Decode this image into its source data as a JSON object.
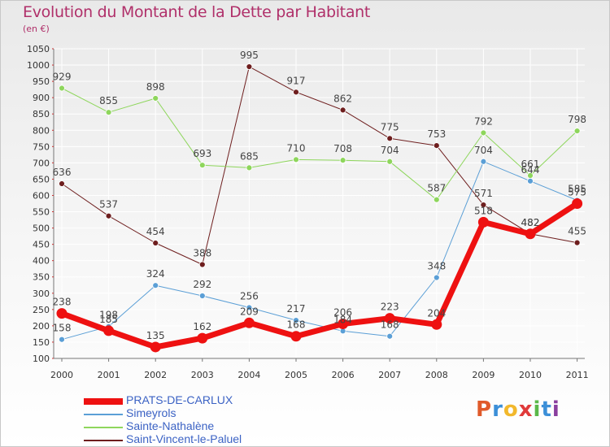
{
  "title": "Evolution du Montant de la Dette par Habitant",
  "subtitle": "(en €)",
  "logo": {
    "text": "Proxiti",
    "letters": [
      {
        "ch": "P",
        "color": "#e05a2a"
      },
      {
        "ch": "r",
        "color": "#3c8fd8"
      },
      {
        "ch": "o",
        "color": "#f2b82c"
      },
      {
        "ch": "x",
        "color": "#e03a3a"
      },
      {
        "ch": "i",
        "color": "#5bb84a"
      },
      {
        "ch": "t",
        "color": "#3c8fd8"
      },
      {
        "ch": "i",
        "color": "#8a3f9e"
      }
    ]
  },
  "chart_data": {
    "type": "line",
    "title": "Evolution du Montant de la Dette par Habitant",
    "subtitle": "(en €)",
    "xlabel": "",
    "ylabel": "",
    "x": [
      "2000",
      "2001",
      "2002",
      "2003",
      "2004",
      "2005",
      "2006",
      "2007",
      "2008",
      "2009",
      "2010",
      "2011"
    ],
    "ylim": [
      100,
      1050
    ],
    "yticks": [
      100,
      150,
      200,
      250,
      300,
      350,
      400,
      450,
      500,
      550,
      600,
      650,
      700,
      750,
      800,
      850,
      900,
      950,
      1000,
      1050
    ],
    "grid": true,
    "legend_position": "bottom-left",
    "series": [
      {
        "name": "Saint-Vincent-le-Paluel",
        "color": "#6e1e1e",
        "width": 1,
        "values": [
          636,
          537,
          454,
          388,
          995,
          917,
          862,
          775,
          753,
          571,
          482,
          455
        ],
        "labels": [
          "636",
          "537",
          "454",
          "388",
          "995",
          "917",
          "862",
          "775",
          "753",
          "571",
          "482",
          "455"
        ]
      },
      {
        "name": "Sainte-Nathalène",
        "color": "#8ed65c",
        "width": 1,
        "values": [
          929,
          855,
          898,
          693,
          685,
          710,
          708,
          704,
          587,
          792,
          661,
          798
        ],
        "labels": [
          "929",
          "855",
          "898",
          "693",
          "685",
          "710",
          "708",
          "704",
          "587",
          "792",
          "661",
          "798"
        ]
      },
      {
        "name": "Simeyrols",
        "color": "#5b9fd6",
        "width": 1,
        "values": [
          158,
          198,
          324,
          292,
          256,
          217,
          184,
          168,
          348,
          704,
          644,
          585
        ],
        "labels": [
          "158",
          "198",
          "324",
          "292",
          "256",
          "217",
          "184",
          "168",
          "348",
          "704",
          "644",
          "585"
        ]
      },
      {
        "name": "PRATS-DE-CARLUX",
        "color": "#ee1111",
        "width": 7,
        "values": [
          238,
          185,
          135,
          162,
          209,
          168,
          206,
          223,
          204,
          518,
          482,
          575
        ],
        "labels": [
          "238",
          "185",
          "135",
          "162",
          "209",
          "168",
          "206",
          "223",
          "204",
          "518",
          "482",
          "575"
        ]
      }
    ]
  }
}
